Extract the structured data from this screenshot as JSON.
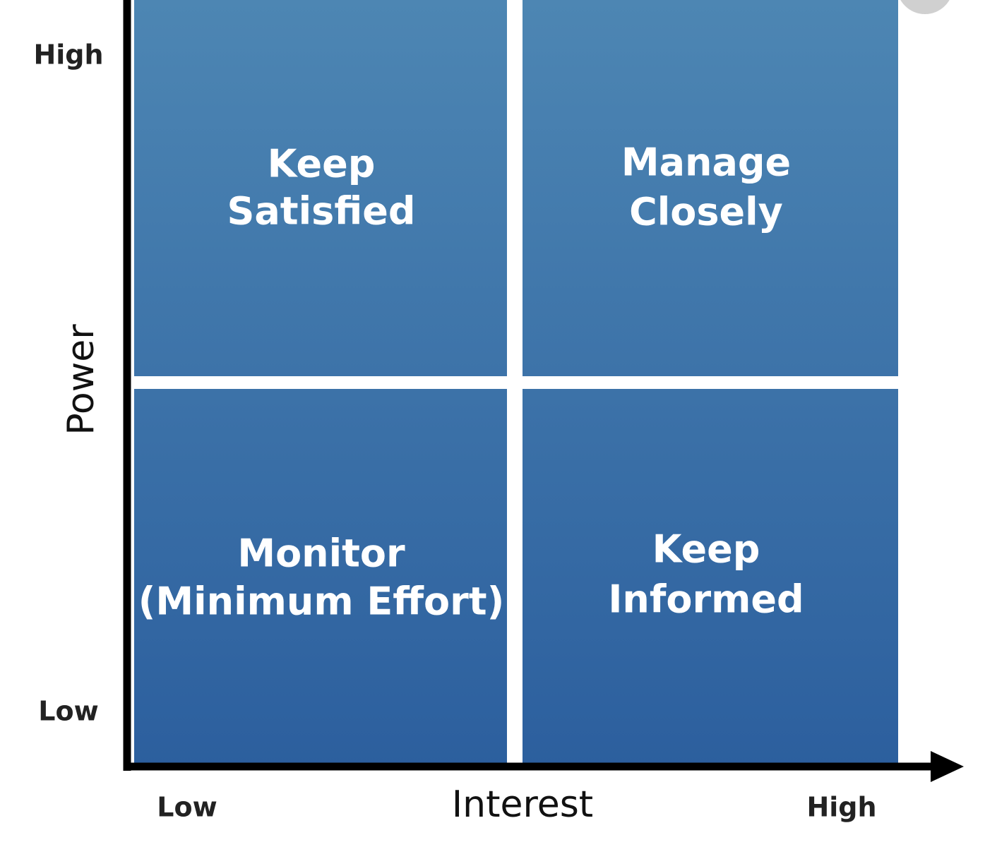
{
  "y_axis": {
    "label": "Power",
    "high": "High",
    "low": "Low"
  },
  "x_axis": {
    "label": "Interest",
    "low": "Low",
    "high": "High"
  },
  "quadrants": [
    {
      "lines": [
        "Keep",
        "Satisfied"
      ]
    },
    {
      "lines": [
        "Manage",
        "Closely"
      ]
    },
    {
      "lines": [
        "Monitor",
        "(Minimum Effort)"
      ]
    },
    {
      "lines": [
        "Keep",
        "Informed"
      ]
    }
  ]
}
